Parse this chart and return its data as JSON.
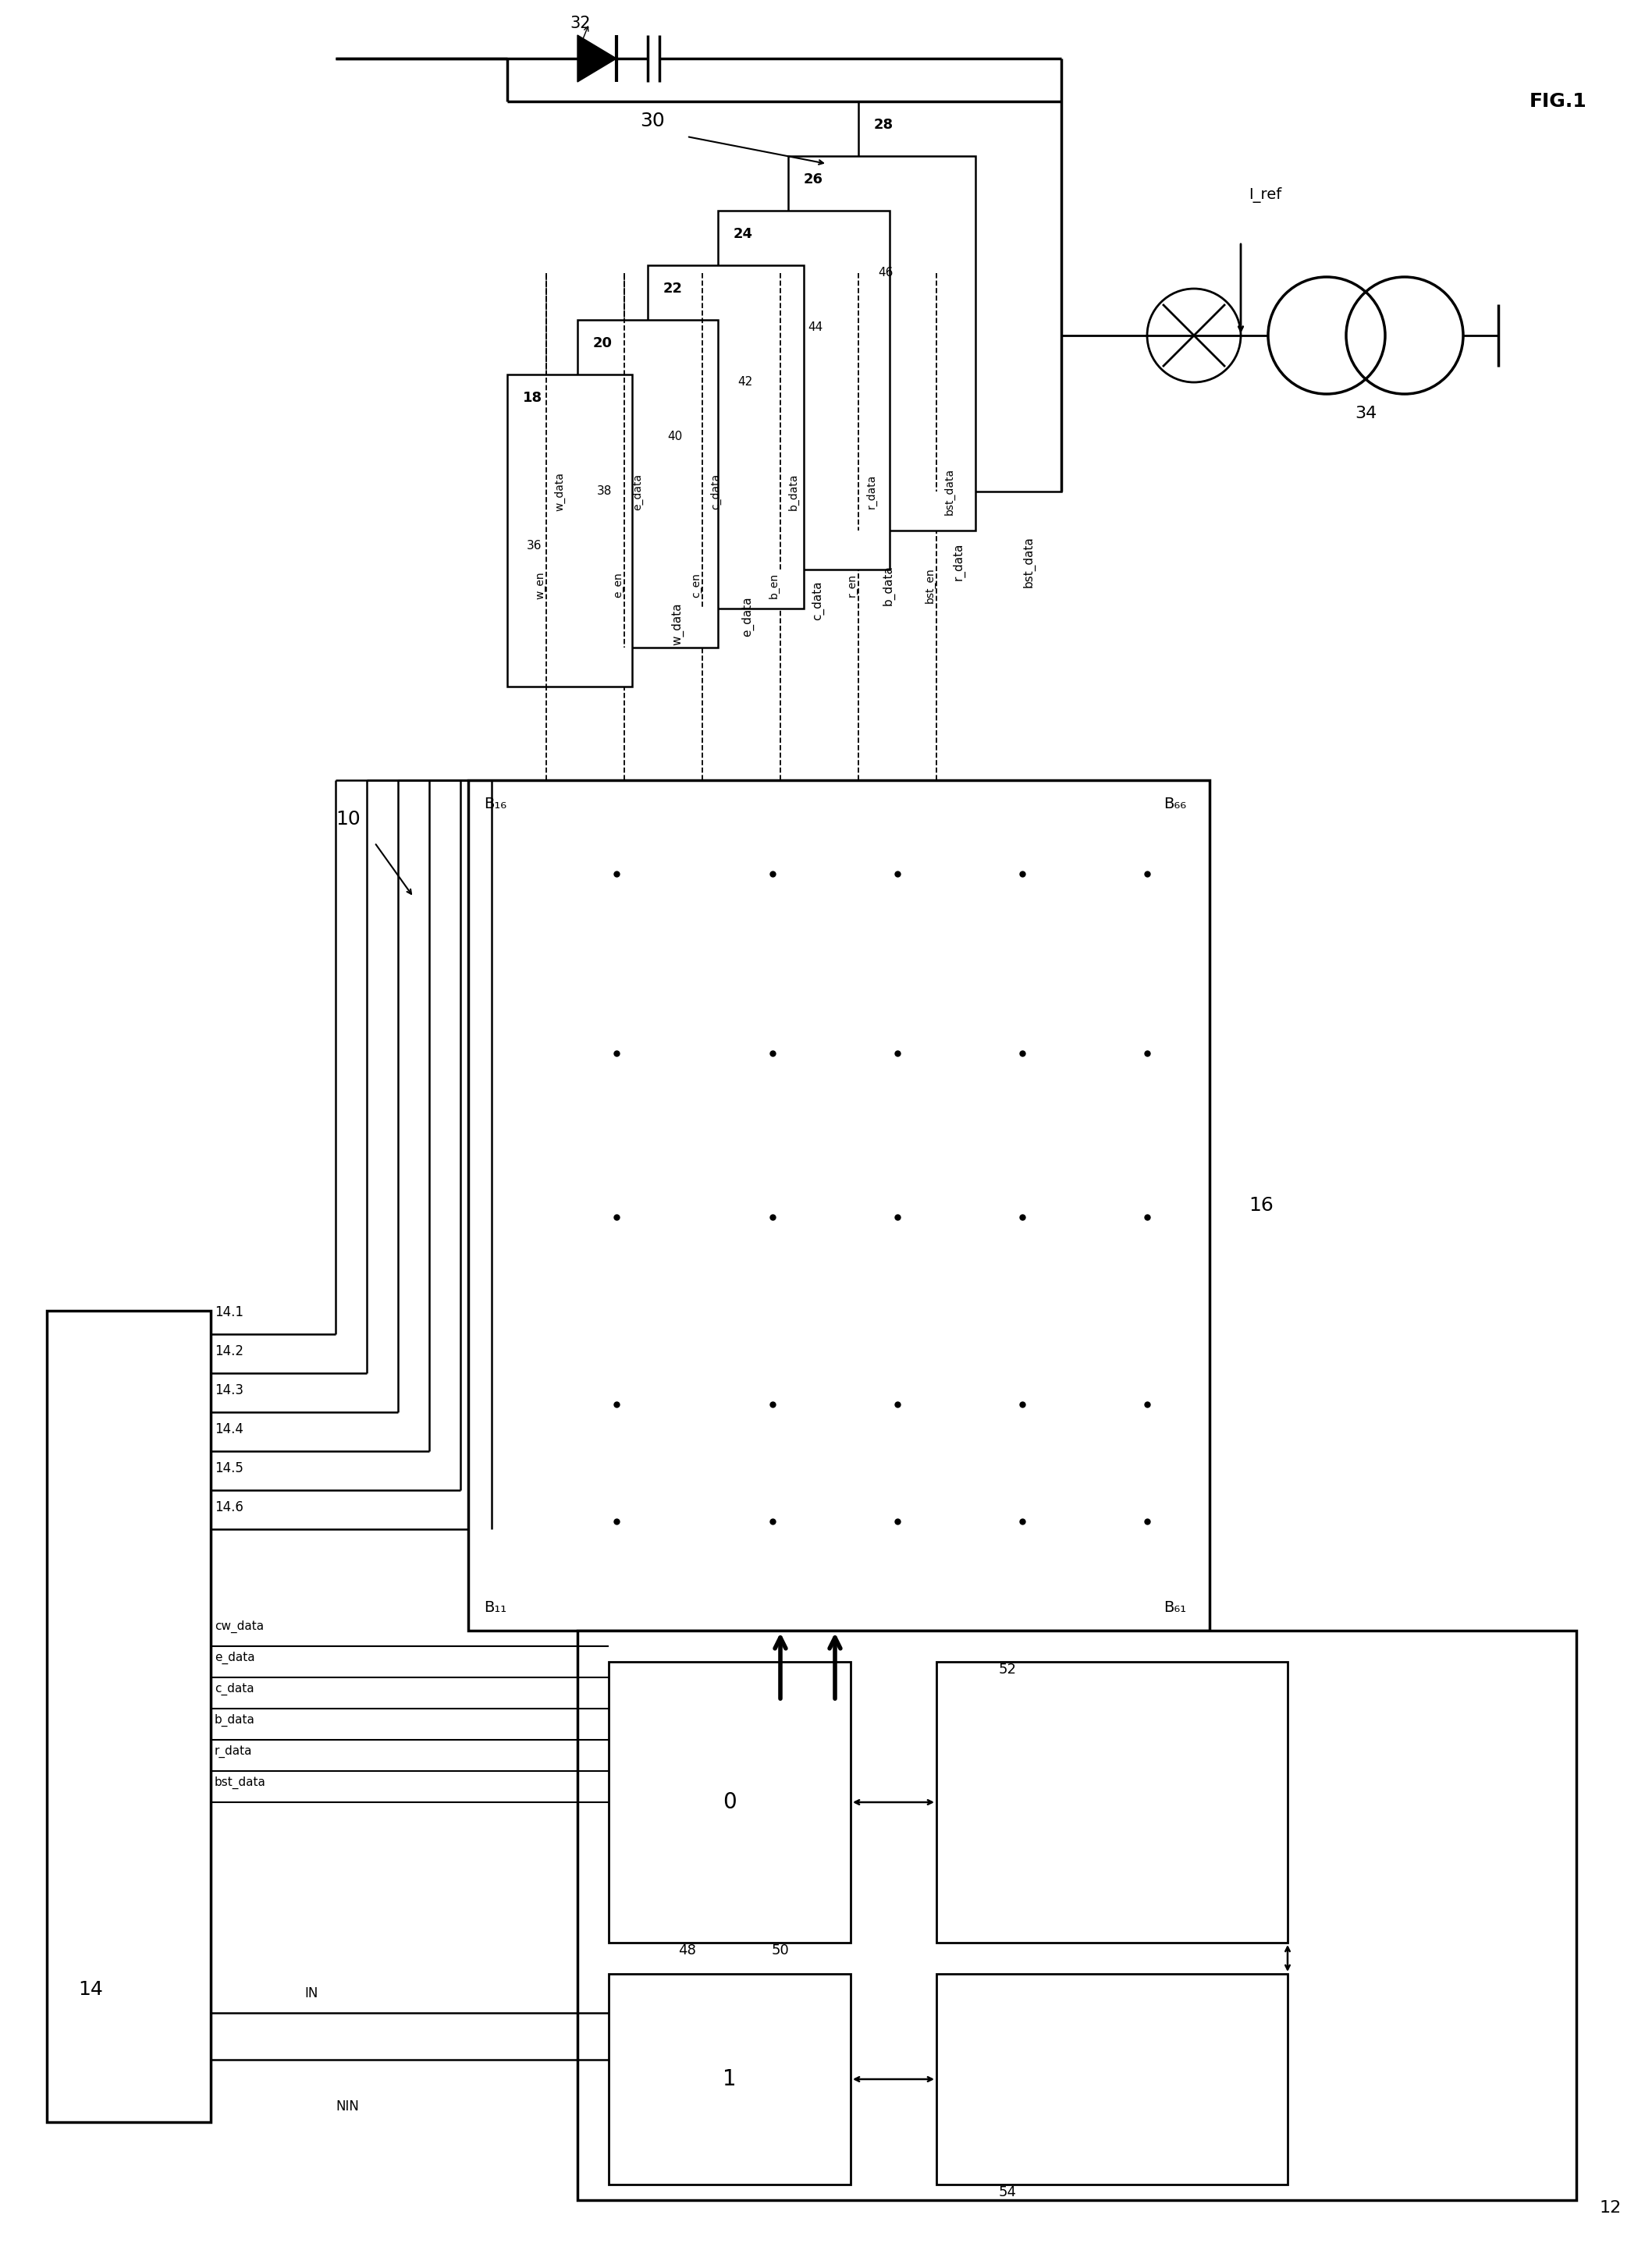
{
  "background_color": "#ffffff",
  "line_color": "#000000",
  "fig_width": 21.08,
  "fig_height": 29.07,
  "labels": {
    "fig": "FIG.1",
    "10": "10",
    "12": "12",
    "14": "14",
    "16": "16",
    "18": "18",
    "20": "20",
    "22": "22",
    "24": "24",
    "26": "26",
    "28": "28",
    "30": "30",
    "32": "32",
    "34": "34",
    "36": "36",
    "38": "38",
    "40": "40",
    "42": "42",
    "44": "44",
    "46": "46",
    "48": "48",
    "50": "50",
    "52": "52",
    "54": "54",
    "14.1": "14.1",
    "14.2": "14.2",
    "14.3": "14.3",
    "14.4": "14.4",
    "14.5": "14.5",
    "14.6": "14.6",
    "B16": "B₁₆",
    "B66": "B₆₆",
    "B11": "B₁₁",
    "B61": "B₆₁",
    "w_en": "w_en",
    "e_en": "e_en",
    "c_en": "c_en",
    "b_en": "b_en",
    "r_en": "r_en",
    "bst_en": "bst_en",
    "w_data": "w_data",
    "e_data": "e_data",
    "c_data": "c_data",
    "b_data": "b_data",
    "r_data": "r_data",
    "bst_data": "bst_data",
    "cw_data": "cw_data",
    "ce_data": "e_data",
    "cc_data": "c_data",
    "cb_data": "b_data",
    "cr_data": "r_data",
    "cbst_data": "bst_data",
    "IN": "IN",
    "NIN": "NIN",
    "I_ref": "I_ref",
    "0_label": "0",
    "1_label": "1"
  }
}
